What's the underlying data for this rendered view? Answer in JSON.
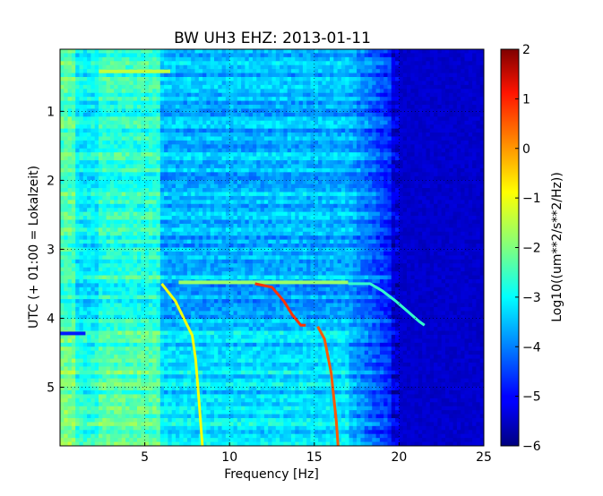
{
  "chart_data": {
    "type": "heatmap",
    "title": "BW UH3 EHZ: 2013-01-11",
    "xlabel": "Frequency [Hz]",
    "ylabel": "UTC (+ 01:00 = Lokalzeit)",
    "xlim": [
      0,
      25
    ],
    "ylim": [
      5.85,
      0.1
    ],
    "x_ticks": [
      5,
      10,
      15,
      20,
      25
    ],
    "y_ticks": [
      1,
      2,
      3,
      4,
      5
    ],
    "grid": true,
    "colormap": "jet",
    "colorbar": {
      "label": "Log10((um**2/s**2/Hz))",
      "range": [
        -6,
        2
      ],
      "ticks": [
        2,
        1,
        0,
        -1,
        -2,
        -3,
        -4,
        -5,
        -6
      ]
    },
    "traces": [
      {
        "points": [
          [
            6.0,
            3.5
          ],
          [
            6.8,
            3.75
          ],
          [
            7.3,
            4.0
          ],
          [
            7.8,
            4.25
          ],
          [
            8.0,
            4.6
          ],
          [
            8.2,
            5.2
          ],
          [
            8.4,
            5.85
          ]
        ],
        "value": -1.1
      },
      {
        "points": [
          [
            11.5,
            3.5
          ],
          [
            12.5,
            3.55
          ],
          [
            13.2,
            3.75
          ],
          [
            13.7,
            3.95
          ],
          [
            14.2,
            4.1
          ],
          [
            14.5,
            4.1
          ]
        ],
        "value": 0.6
      },
      {
        "points": [
          [
            15.2,
            4.12
          ],
          [
            15.6,
            4.3
          ],
          [
            16.0,
            4.8
          ],
          [
            16.3,
            5.5
          ],
          [
            16.4,
            5.85
          ]
        ],
        "value": 0.3
      },
      {
        "points": [
          [
            17.0,
            3.5
          ],
          [
            18.3,
            3.5
          ],
          [
            19.0,
            3.6
          ],
          [
            19.8,
            3.75
          ],
          [
            20.5,
            3.9
          ],
          [
            21.2,
            4.05
          ],
          [
            21.5,
            4.1
          ]
        ],
        "value": -2.6
      }
    ],
    "bands": [
      {
        "y": 0.42,
        "x": [
          2.3,
          6.5
        ],
        "value": -1.5
      },
      {
        "y": 4.22,
        "x": [
          0.0,
          1.5
        ],
        "value": -4.8
      },
      {
        "y": 3.48,
        "x": [
          7.0,
          17.0
        ],
        "value": -1.8
      }
    ]
  }
}
